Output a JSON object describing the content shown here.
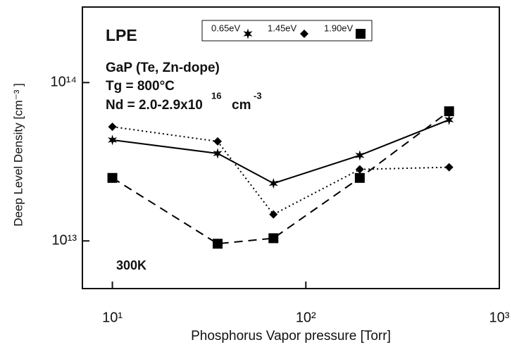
{
  "chart_data": {
    "type": "line",
    "x_label": "Phosphorus Vapor pressure [Torr]",
    "y_label": "Deep Level Density [cm⁻³ ]",
    "annotations": [
      "LPE",
      "GaP (Te, Zn-dope)",
      "Tg = 800°C"
    ],
    "nd": {
      "text": "Nd = 2.0-2.9x10",
      "sup": "16",
      "unit": "cm",
      "unit_sup": "-3"
    },
    "temperature": "300K",
    "x": [
      10,
      35,
      68,
      190,
      550
    ],
    "series": [
      {
        "name": "0.65eV",
        "color": "#000000",
        "marker": "star",
        "line_style": "solid",
        "values": [
          43400000000000,
          35700000000000,
          23100000000000,
          34700000000000,
          58200000000000
        ]
      },
      {
        "name": "1.45eV",
        "color": "#000000",
        "marker": "diamond",
        "line_style": "dotted",
        "values": [
          52600000000000,
          42500000000000,
          14700000000000,
          28300000000000,
          29200000000000
        ]
      },
      {
        "name": "1.90eV",
        "color": "#000000",
        "marker": "square",
        "line_style": "dashed",
        "values": [
          25000000000000,
          9600000000000,
          10400000000000,
          25000000000000,
          65900000000000
        ]
      }
    ],
    "xlog": true,
    "ylog": true,
    "xlim": [
      7,
      1000
    ],
    "ylim": [
      5000000000000,
      300000000000000
    ],
    "xticks": [
      {
        "value": 10,
        "label": "10¹"
      },
      {
        "value": 100,
        "label": "10²"
      },
      {
        "value": 1000,
        "label": "10³"
      }
    ],
    "yticks": [
      {
        "value": 10000000000000,
        "label": "10¹³"
      },
      {
        "value": 100000000000000,
        "label": "10¹⁴"
      }
    ],
    "legend": "top"
  }
}
